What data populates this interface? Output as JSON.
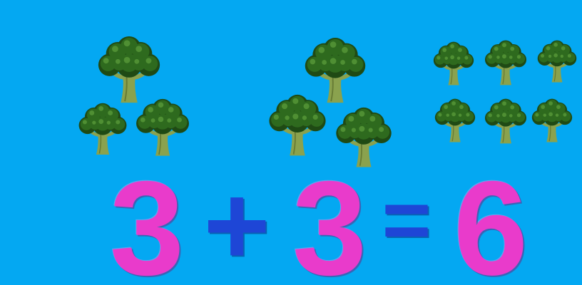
{
  "background_color": "#04a8f2",
  "colors": {
    "number": "#e93bcb",
    "operator": "#1e46d6",
    "broccoli_dark": "#1f4a14",
    "broccoli_mid": "#2e6a1e",
    "broccoli_light": "#4f8f33",
    "broccoli_stem": "#8aa24e",
    "broccoli_stem_dark": "#667b34"
  },
  "groups": [
    {
      "name": "first-addend",
      "broccoli_count": 3,
      "icon": "broccoli-icon"
    },
    {
      "name": "second-addend",
      "broccoli_count": 3,
      "icon": "broccoli-icon"
    },
    {
      "name": "sum",
      "broccoli_count": 6,
      "icon": "broccoli-icon"
    }
  ],
  "equation": {
    "addend_1": "3",
    "plus": "+",
    "addend_2": "3",
    "equals": "=",
    "result": "6"
  }
}
